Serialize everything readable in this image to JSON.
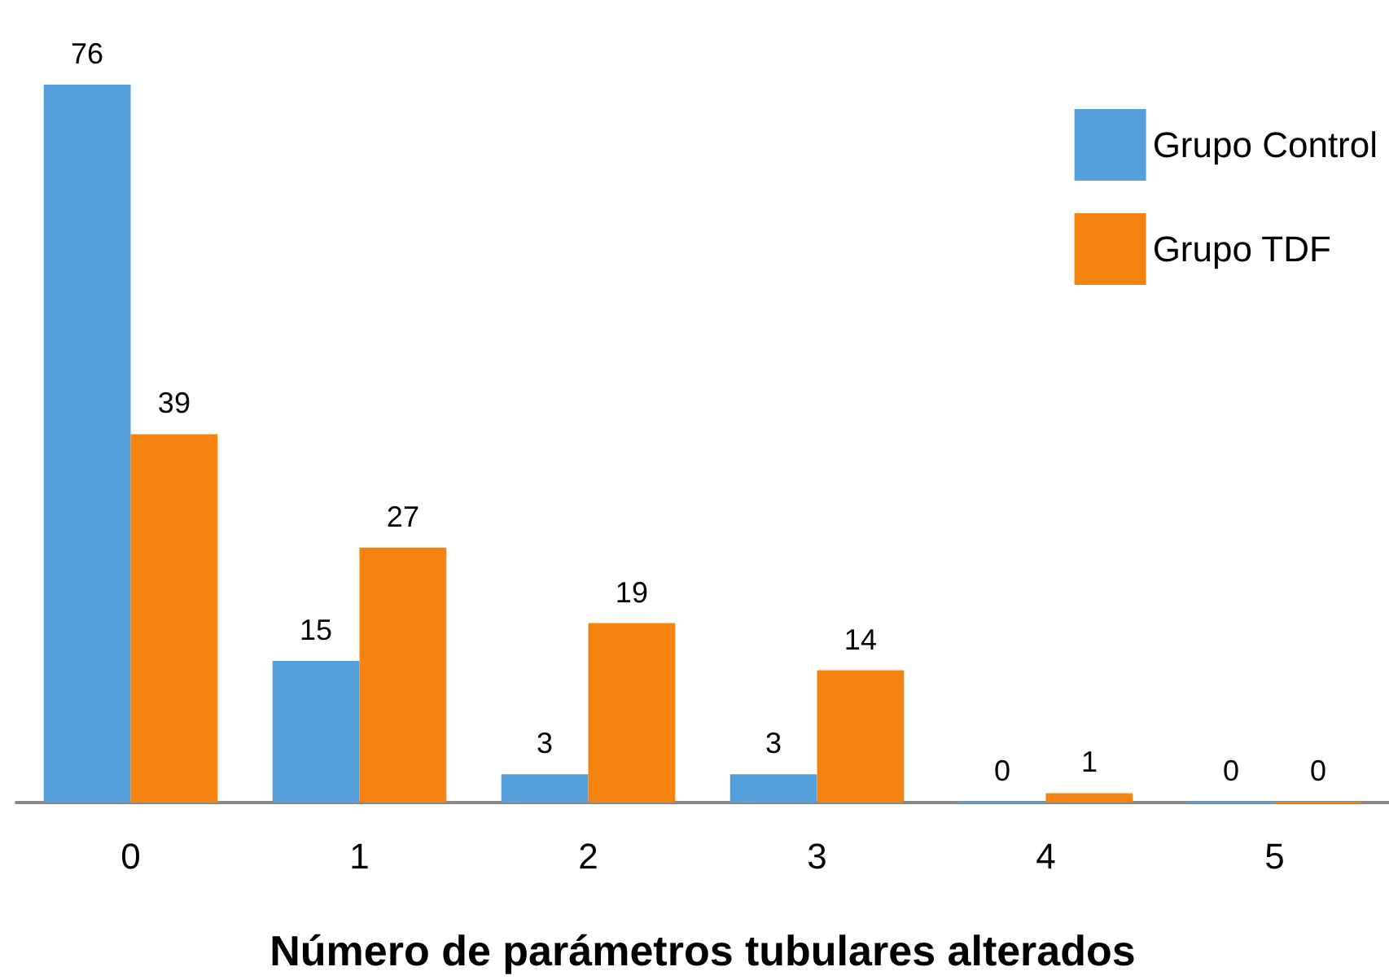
{
  "chart_data": {
    "type": "bar",
    "xlabel": "Número de parámetros tubulares alterados",
    "categories": [
      "0",
      "1",
      "2",
      "3",
      "4",
      "5"
    ],
    "series": [
      {
        "name": "Grupo Control",
        "color": "#559fdc",
        "values": [
          76,
          15,
          3,
          3,
          0,
          0
        ]
      },
      {
        "name": "Grupo TDF",
        "color": "#f5830f",
        "values": [
          39,
          27,
          19,
          14,
          1,
          0
        ]
      }
    ],
    "data_labels": true,
    "legend": "top right",
    "tick_labels": "x"
  }
}
